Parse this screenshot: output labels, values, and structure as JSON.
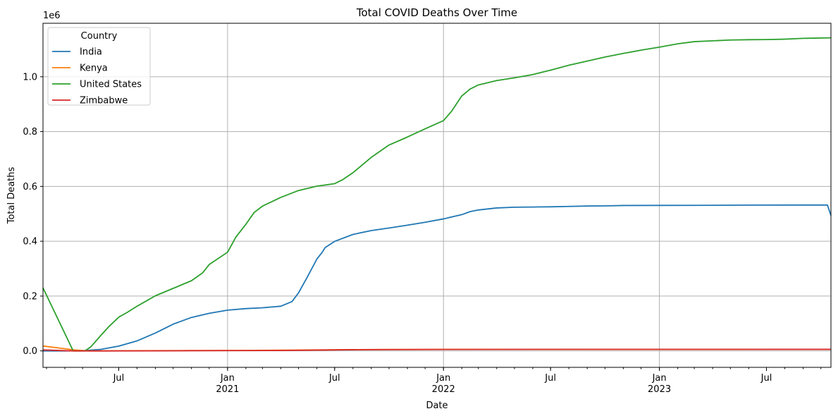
{
  "chart_data": {
    "type": "line",
    "title": "Total COVID Deaths Over Time",
    "xlabel": "Date",
    "ylabel": "Total Deaths",
    "y_offset_label": "1e6",
    "xlim": [
      "2020-02-24",
      "2023-10-18"
    ],
    "ylim": [
      -60000,
      1195000
    ],
    "grid": true,
    "legend": {
      "title": "Country",
      "position": "top-left"
    },
    "x_major_ticks": [
      {
        "date": "2020-07-01",
        "label": "Jul",
        "sublabel": ""
      },
      {
        "date": "2021-01-01",
        "label": "Jan",
        "sublabel": "2021"
      },
      {
        "date": "2021-07-01",
        "label": "Jul",
        "sublabel": ""
      },
      {
        "date": "2022-01-01",
        "label": "Jan",
        "sublabel": "2022"
      },
      {
        "date": "2022-07-01",
        "label": "Jul",
        "sublabel": ""
      },
      {
        "date": "2023-01-01",
        "label": "Jan",
        "sublabel": "2023"
      },
      {
        "date": "2023-07-01",
        "label": "Jul",
        "sublabel": ""
      }
    ],
    "x_grid_dates": [
      "2021-01-01",
      "2022-01-01",
      "2023-01-01"
    ],
    "y_ticks": [
      0.0,
      0.2,
      0.4,
      0.6,
      0.8,
      1.0
    ],
    "series": [
      {
        "name": "India",
        "color": "#1f77b4",
        "points": [
          [
            "2020-02-24",
            0
          ],
          [
            "2020-04-01",
            0
          ],
          [
            "2020-05-01",
            800
          ],
          [
            "2020-06-01",
            5500
          ],
          [
            "2020-07-01",
            17400
          ],
          [
            "2020-08-01",
            36500
          ],
          [
            "2020-09-01",
            65300
          ],
          [
            "2020-10-01",
            97500
          ],
          [
            "2020-11-01",
            122100
          ],
          [
            "2020-12-01",
            137100
          ],
          [
            "2021-01-01",
            148700
          ],
          [
            "2021-02-01",
            154300
          ],
          [
            "2021-03-01",
            157300
          ],
          [
            "2021-04-01",
            162900
          ],
          [
            "2021-04-20",
            180000
          ],
          [
            "2021-05-01",
            211800
          ],
          [
            "2021-05-15",
            266200
          ],
          [
            "2021-06-01",
            335100
          ],
          [
            "2021-06-10",
            359700
          ],
          [
            "2021-06-15",
            377000
          ],
          [
            "2021-07-01",
            399500
          ],
          [
            "2021-08-01",
            424800
          ],
          [
            "2021-09-01",
            439000
          ],
          [
            "2021-10-01",
            448300
          ],
          [
            "2021-11-01",
            458400
          ],
          [
            "2021-12-01",
            469200
          ],
          [
            "2022-01-01",
            481500
          ],
          [
            "2022-02-01",
            497000
          ],
          [
            "2022-02-15",
            508000
          ],
          [
            "2022-03-01",
            514000
          ],
          [
            "2022-04-01",
            521400
          ],
          [
            "2022-05-01",
            524000
          ],
          [
            "2022-06-01",
            524800
          ],
          [
            "2022-07-01",
            525500
          ],
          [
            "2022-08-01",
            527000
          ],
          [
            "2022-09-01",
            528400
          ],
          [
            "2022-10-01",
            529000
          ],
          [
            "2022-11-01",
            530400
          ],
          [
            "2023-01-01",
            530700
          ],
          [
            "2023-03-01",
            530800
          ],
          [
            "2023-06-01",
            531900
          ],
          [
            "2023-09-01",
            532000
          ],
          [
            "2023-10-12",
            532000
          ],
          [
            "2023-10-18",
            494000
          ]
        ]
      },
      {
        "name": "Kenya",
        "color": "#ff7f0e",
        "points": [
          [
            "2020-02-24",
            18000
          ],
          [
            "2020-04-15",
            4000
          ],
          [
            "2020-05-10",
            0
          ],
          [
            "2020-06-01",
            0
          ],
          [
            "2020-08-01",
            600
          ],
          [
            "2020-11-01",
            1300
          ],
          [
            "2021-02-01",
            1800
          ],
          [
            "2021-06-01",
            3500
          ],
          [
            "2021-10-01",
            5100
          ],
          [
            "2022-03-01",
            5600
          ],
          [
            "2023-01-01",
            5700
          ],
          [
            "2023-10-18",
            5700
          ]
        ]
      },
      {
        "name": "United States",
        "color": "#2ca02c",
        "points": [
          [
            "2020-02-24",
            230000
          ],
          [
            "2020-04-15",
            0
          ],
          [
            "2020-05-05",
            0
          ],
          [
            "2020-05-15",
            15000
          ],
          [
            "2020-06-01",
            57000
          ],
          [
            "2020-06-15",
            90000
          ],
          [
            "2020-07-01",
            123000
          ],
          [
            "2020-07-15",
            140000
          ],
          [
            "2020-08-01",
            163000
          ],
          [
            "2020-09-01",
            201000
          ],
          [
            "2020-10-01",
            228000
          ],
          [
            "2020-11-01",
            256000
          ],
          [
            "2020-11-20",
            285000
          ],
          [
            "2020-12-01",
            315000
          ],
          [
            "2021-01-01",
            360000
          ],
          [
            "2021-01-15",
            415000
          ],
          [
            "2021-02-01",
            462000
          ],
          [
            "2021-02-15",
            505000
          ],
          [
            "2021-03-01",
            528000
          ],
          [
            "2021-04-01",
            560000
          ],
          [
            "2021-05-01",
            585000
          ],
          [
            "2021-06-01",
            601000
          ],
          [
            "2021-07-01",
            610000
          ],
          [
            "2021-07-15",
            625000
          ],
          [
            "2021-08-01",
            650000
          ],
          [
            "2021-09-01",
            706000
          ],
          [
            "2021-10-01",
            751000
          ],
          [
            "2021-11-01",
            780000
          ],
          [
            "2021-12-01",
            810000
          ],
          [
            "2022-01-01",
            840000
          ],
          [
            "2022-01-15",
            875000
          ],
          [
            "2022-02-01",
            930000
          ],
          [
            "2022-02-15",
            955000
          ],
          [
            "2022-03-01",
            970000
          ],
          [
            "2022-04-01",
            986000
          ],
          [
            "2022-05-01",
            996000
          ],
          [
            "2022-06-01",
            1008000
          ],
          [
            "2022-07-01",
            1024000
          ],
          [
            "2022-08-01",
            1042000
          ],
          [
            "2022-09-01",
            1057000
          ],
          [
            "2022-10-01",
            1072000
          ],
          [
            "2022-11-01",
            1085000
          ],
          [
            "2022-12-01",
            1097000
          ],
          [
            "2023-01-01",
            1108000
          ],
          [
            "2023-02-01",
            1120000
          ],
          [
            "2023-03-01",
            1128000
          ],
          [
            "2023-04-01",
            1131000
          ],
          [
            "2023-05-01",
            1134000
          ],
          [
            "2023-06-01",
            1135000
          ],
          [
            "2023-07-01",
            1135500
          ],
          [
            "2023-08-01",
            1137000
          ],
          [
            "2023-09-01",
            1140000
          ],
          [
            "2023-10-18",
            1142000
          ]
        ]
      },
      {
        "name": "Zimbabwe",
        "color": "#d62728",
        "points": [
          [
            "2020-02-24",
            3500
          ],
          [
            "2020-04-15",
            0
          ],
          [
            "2020-06-01",
            0
          ],
          [
            "2020-09-01",
            300
          ],
          [
            "2021-01-01",
            1000
          ],
          [
            "2021-04-01",
            1500
          ],
          [
            "2021-08-01",
            4500
          ],
          [
            "2022-01-01",
            5300
          ],
          [
            "2022-06-01",
            5500
          ],
          [
            "2023-01-01",
            5600
          ],
          [
            "2023-10-18",
            5700
          ]
        ]
      }
    ]
  }
}
